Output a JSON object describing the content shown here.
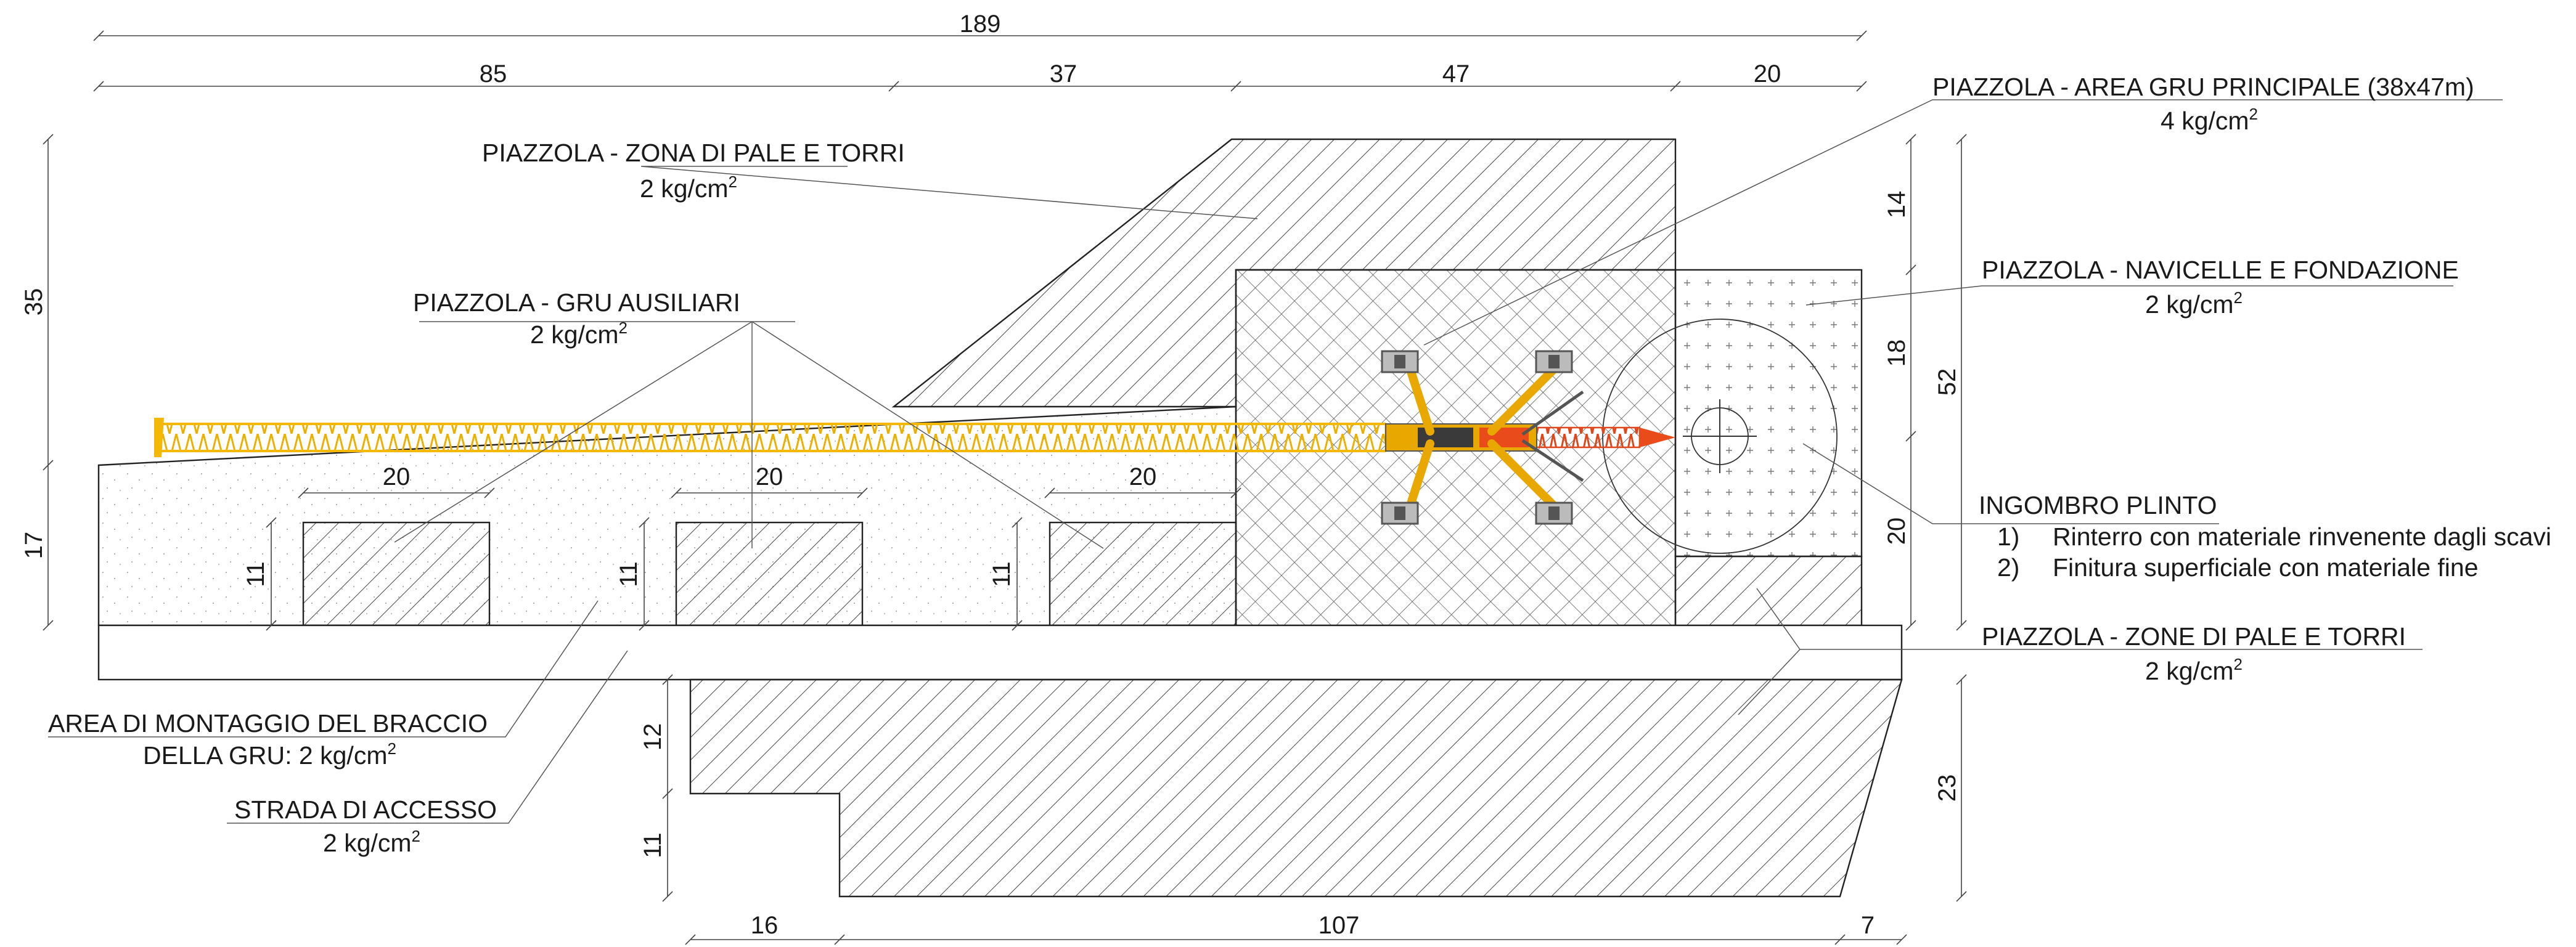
{
  "dimensions": {
    "top_total": "189",
    "top_segments": [
      "85",
      "37",
      "47",
      "20"
    ],
    "left": [
      "35",
      "17"
    ],
    "pads": [
      "20",
      "20",
      "20"
    ],
    "pad_heights": [
      "11",
      "11",
      "11"
    ],
    "right_inner": [
      "14",
      "18",
      "20"
    ],
    "right_outer": "52",
    "lower_left": [
      "12",
      "11"
    ],
    "lower_right": "23",
    "bottom": [
      "16",
      "107",
      "7"
    ]
  },
  "labels": {
    "main_crane": {
      "title": "PIAZZOLA - AREA GRU PRINCIPALE (38x47m)",
      "value": "4 kg/cm",
      "sup": "2"
    },
    "blades_towers": {
      "title": "PIAZZOLA - ZONA DI PALE E TORRI",
      "value": "2 kg/cm",
      "sup": "2"
    },
    "aux_cranes": {
      "title": "PIAZZOLA - GRU AUSILIARI",
      "value": "2 kg/cm",
      "sup": "2"
    },
    "nacelles": {
      "title": "PIAZZOLA - NAVICELLE E FONDAZIONE",
      "value": "2 kg/cm",
      "sup": "2"
    },
    "plinth": {
      "title": "INGOMBRO PLINTO",
      "items": [
        {
          "num": "1)",
          "text": "Rinterro con materiale rinvenente dagli scavi"
        },
        {
          "num": "2)",
          "text": "Finitura superficiale con materiale fine"
        }
      ]
    },
    "blades_towers_2": {
      "title": "PIAZZOLA - ZONE DI PALE E TORRI",
      "value": "2 kg/cm",
      "sup": "2"
    },
    "boom_assembly": {
      "line1": "AREA DI MONTAGGIO DEL BRACCIO",
      "line2": "DELLA GRU: 2 kg/cm",
      "sup": "2"
    },
    "access_road": {
      "title": "STRADA DI ACCESSO",
      "value": "2 kg/cm",
      "sup": "2"
    }
  },
  "colors": {
    "boom_yellow": "#f5b800",
    "boom_red": "#ea4b1a",
    "crane_body": "#e8a800",
    "line": "#222222"
  }
}
